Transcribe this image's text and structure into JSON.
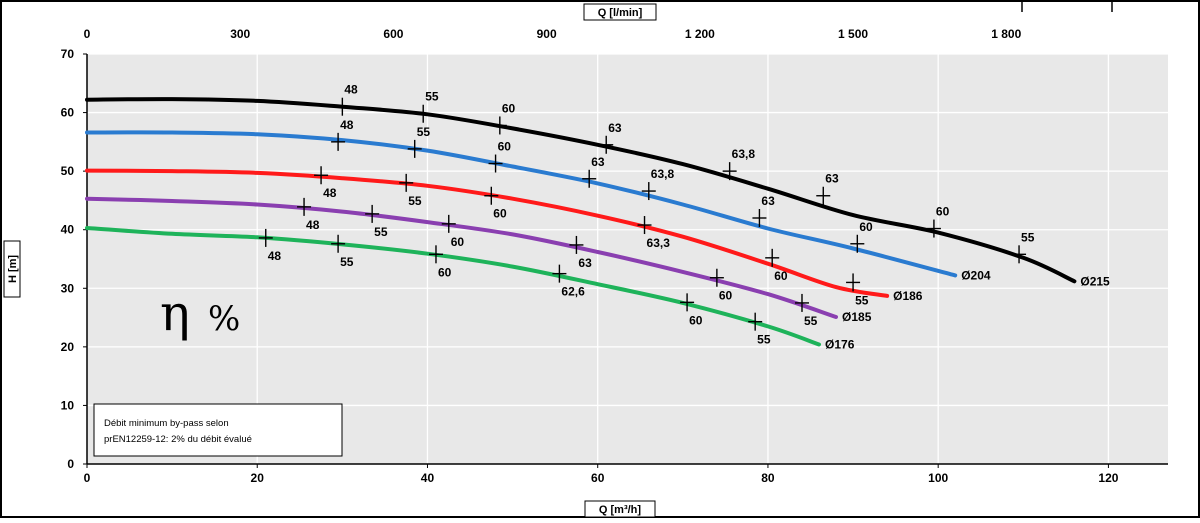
{
  "chart_data": {
    "type": "line",
    "x_axis": {
      "label": "Q [m³/h]",
      "range": [
        0,
        127
      ],
      "ticks": [
        0,
        20,
        40,
        60,
        80,
        100,
        120
      ],
      "tick_labels": [
        "0",
        "20",
        "40",
        "60",
        "80",
        "100",
        "120"
      ]
    },
    "x2_axis": {
      "label": "Q [l/min]",
      "ticks": [
        0,
        300,
        600,
        900,
        1200,
        1500,
        1800
      ],
      "tick_labels": [
        "0",
        "300",
        "600",
        "900",
        "1 200",
        "1 500",
        "1 800"
      ]
    },
    "y_axis": {
      "label": "H [m]",
      "range": [
        0,
        70
      ],
      "ticks": [
        0,
        10,
        20,
        30,
        40,
        50,
        60,
        70
      ],
      "tick_labels": [
        "0",
        "10",
        "20",
        "30",
        "40",
        "50",
        "60",
        "70"
      ]
    },
    "grid": true,
    "series": [
      {
        "name": "Ø215",
        "color": "#000000",
        "points": [
          [
            0,
            62.2
          ],
          [
            10,
            62.3
          ],
          [
            20,
            62
          ],
          [
            30,
            61
          ],
          [
            40,
            59.7
          ],
          [
            50,
            57.3
          ],
          [
            60,
            54.5
          ],
          [
            70,
            51.2
          ],
          [
            80,
            47
          ],
          [
            90,
            42.5
          ],
          [
            100,
            39.5
          ],
          [
            110,
            35.2
          ],
          [
            116,
            31.2
          ]
        ],
        "efficiency_marks": [
          {
            "q": 30,
            "h": 61,
            "label": "48"
          },
          {
            "q": 39.5,
            "h": 59.8,
            "label": "55"
          },
          {
            "q": 48.5,
            "h": 57.8,
            "label": "60"
          },
          {
            "q": 61,
            "h": 54.5,
            "label": "63"
          },
          {
            "q": 75.5,
            "h": 50,
            "label": "63,8"
          },
          {
            "q": 86.5,
            "h": 45.8,
            "label": "63"
          },
          {
            "q": 99.5,
            "h": 40.2,
            "label": "60"
          },
          {
            "q": 109.5,
            "h": 35.8,
            "label": "55"
          }
        ]
      },
      {
        "name": "Ø204",
        "color": "#2a7bd0",
        "points": [
          [
            0,
            56.6
          ],
          [
            10,
            56.6
          ],
          [
            20,
            56.3
          ],
          [
            30,
            55.3
          ],
          [
            40,
            53.5
          ],
          [
            50,
            50.8
          ],
          [
            60,
            47.9
          ],
          [
            70,
            44.3
          ],
          [
            80,
            40.2
          ],
          [
            90,
            36.8
          ],
          [
            102,
            32.2
          ]
        ],
        "efficiency_marks": [
          {
            "q": 29.5,
            "h": 55,
            "label": "48"
          },
          {
            "q": 38.5,
            "h": 53.8,
            "label": "55"
          },
          {
            "q": 48,
            "h": 51.3,
            "label": "60"
          },
          {
            "q": 59,
            "h": 48.7,
            "label": "63"
          },
          {
            "q": 66,
            "h": 46.6,
            "label": "63,8"
          },
          {
            "q": 79,
            "h": 42,
            "label": "63"
          },
          {
            "q": 90.5,
            "h": 37.6,
            "label": "60"
          }
        ]
      },
      {
        "name": "Ø186",
        "color": "#ff1a1a",
        "points": [
          [
            0,
            50.1
          ],
          [
            10,
            50
          ],
          [
            20,
            49.7
          ],
          [
            30,
            48.8
          ],
          [
            40,
            47.5
          ],
          [
            50,
            45.3
          ],
          [
            60,
            42.4
          ],
          [
            70,
            38.8
          ],
          [
            80,
            34.2
          ],
          [
            88,
            30.2
          ],
          [
            94,
            28.7
          ]
        ],
        "efficiency_marks": [
          {
            "q": 27.5,
            "h": 49.3,
            "label": "48"
          },
          {
            "q": 37.5,
            "h": 48,
            "label": "55"
          },
          {
            "q": 47.5,
            "h": 45.8,
            "label": "60"
          },
          {
            "q": 65.5,
            "h": 40.8,
            "label": "63,3"
          },
          {
            "q": 80.5,
            "h": 35.2,
            "label": "60"
          },
          {
            "q": 90,
            "h": 31,
            "label": "55"
          }
        ]
      },
      {
        "name": "Ø185",
        "color": "#8a3fb0",
        "points": [
          [
            0,
            45.3
          ],
          [
            10,
            44.9
          ],
          [
            20,
            44.3
          ],
          [
            30,
            43.1
          ],
          [
            40,
            41.3
          ],
          [
            50,
            39.2
          ],
          [
            60,
            36.2
          ],
          [
            70,
            32.8
          ],
          [
            80,
            29
          ],
          [
            88,
            25.1
          ]
        ],
        "efficiency_marks": [
          {
            "q": 25.5,
            "h": 43.9,
            "label": "48"
          },
          {
            "q": 33.5,
            "h": 42.7,
            "label": "55"
          },
          {
            "q": 42.5,
            "h": 41,
            "label": "60"
          },
          {
            "q": 57.5,
            "h": 37.4,
            "label": "63"
          },
          {
            "q": 74,
            "h": 31.8,
            "label": "60"
          },
          {
            "q": 84,
            "h": 27.5,
            "label": "55"
          }
        ]
      },
      {
        "name": "Ø176",
        "color": "#1eb35a",
        "points": [
          [
            0,
            40.3
          ],
          [
            10,
            39.3
          ],
          [
            20,
            38.7
          ],
          [
            30,
            37.5
          ],
          [
            40,
            35.9
          ],
          [
            50,
            33.7
          ],
          [
            60,
            30.7
          ],
          [
            70,
            27.5
          ],
          [
            80,
            23.5
          ],
          [
            86,
            20.4
          ]
        ],
        "efficiency_marks": [
          {
            "q": 21,
            "h": 38.6,
            "label": "48"
          },
          {
            "q": 29.5,
            "h": 37.6,
            "label": "55"
          },
          {
            "q": 41,
            "h": 35.8,
            "label": "60"
          },
          {
            "q": 55.5,
            "h": 32.5,
            "label": "62,6"
          },
          {
            "q": 70.5,
            "h": 27.6,
            "label": "60"
          },
          {
            "q": 78.5,
            "h": 24.3,
            "label": "55"
          }
        ]
      }
    ]
  },
  "annotations": {
    "efficiency_symbol": "η",
    "efficiency_unit": "%",
    "note_line1": "Débit minimum by-pass selon",
    "note_line2": "prEN12259-12: 2% du débit évalué"
  }
}
